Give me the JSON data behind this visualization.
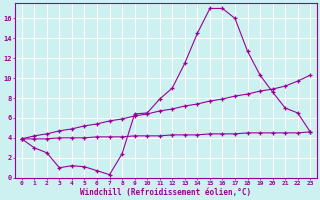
{
  "xlabel": "Windchill (Refroidissement éolien,°C)",
  "bg_color": "#cdf0f0",
  "grid_color": "#ffffff",
  "line_color": "#990099",
  "xlim": [
    -0.5,
    23.5
  ],
  "ylim": [
    0,
    17.5
  ],
  "yticks": [
    0,
    2,
    4,
    6,
    8,
    10,
    12,
    14,
    16
  ],
  "xticks": [
    0,
    1,
    2,
    3,
    4,
    5,
    6,
    7,
    8,
    9,
    10,
    11,
    12,
    13,
    14,
    15,
    16,
    17,
    18,
    19,
    20,
    21,
    22,
    23
  ],
  "line1_x": [
    0,
    1,
    2,
    3,
    4,
    5,
    6,
    7,
    8,
    9,
    10,
    11,
    12,
    13,
    14,
    15,
    16,
    17,
    18,
    19,
    20,
    21,
    22,
    23
  ],
  "line1_y": [
    3.9,
    3.0,
    2.5,
    1.0,
    1.2,
    1.1,
    0.7,
    0.3,
    2.4,
    6.4,
    6.5,
    7.9,
    9.0,
    11.5,
    14.5,
    17.0,
    17.0,
    16.0,
    12.7,
    10.3,
    8.6,
    7.0,
    6.5,
    4.6
  ],
  "line2_x": [
    0,
    23
  ],
  "line2_y": [
    3.9,
    10.3
  ],
  "line2_full_x": [
    0,
    1,
    2,
    3,
    4,
    5,
    6,
    7,
    8,
    9,
    10,
    11,
    12,
    13,
    14,
    15,
    16,
    17,
    18,
    19,
    20,
    21,
    22,
    23
  ],
  "line2_full_y": [
    3.9,
    4.2,
    4.4,
    4.7,
    4.9,
    5.2,
    5.4,
    5.7,
    5.9,
    6.2,
    6.4,
    6.7,
    6.9,
    7.2,
    7.4,
    7.7,
    7.9,
    8.2,
    8.4,
    8.7,
    8.9,
    9.2,
    9.7,
    10.3
  ],
  "line3_full_x": [
    0,
    1,
    2,
    3,
    4,
    5,
    6,
    7,
    8,
    9,
    10,
    11,
    12,
    13,
    14,
    15,
    16,
    17,
    18,
    19,
    20,
    21,
    22,
    23
  ],
  "line3_full_y": [
    3.9,
    3.9,
    3.9,
    4.0,
    4.0,
    4.0,
    4.1,
    4.1,
    4.1,
    4.2,
    4.2,
    4.2,
    4.3,
    4.3,
    4.3,
    4.4,
    4.4,
    4.4,
    4.5,
    4.5,
    4.5,
    4.5,
    4.5,
    4.6
  ]
}
